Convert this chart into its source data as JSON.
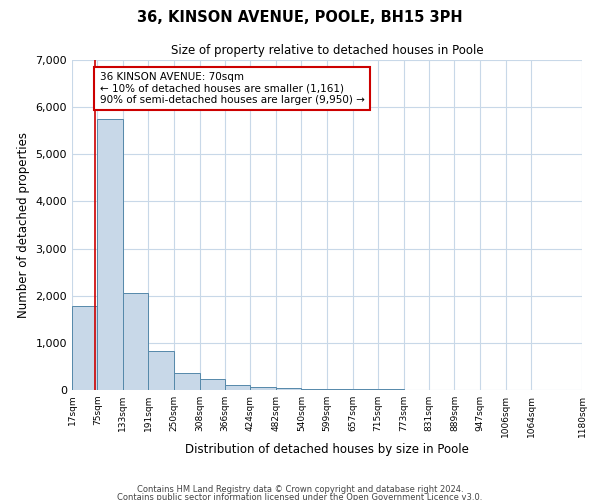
{
  "title": "36, KINSON AVENUE, POOLE, BH15 3PH",
  "subtitle": "Size of property relative to detached houses in Poole",
  "xlabel": "Distribution of detached houses by size in Poole",
  "ylabel": "Number of detached properties",
  "bar_values": [
    1780,
    5750,
    2050,
    830,
    370,
    230,
    110,
    60,
    40,
    30,
    25,
    20,
    15,
    0,
    0,
    0,
    0,
    0,
    0
  ],
  "bin_edges": [
    17,
    75,
    133,
    191,
    250,
    308,
    366,
    424,
    482,
    540,
    599,
    657,
    715,
    773,
    831,
    889,
    947,
    1006,
    1064,
    1180
  ],
  "tick_labels": [
    "17sqm",
    "75sqm",
    "133sqm",
    "191sqm",
    "250sqm",
    "308sqm",
    "366sqm",
    "424sqm",
    "482sqm",
    "540sqm",
    "599sqm",
    "657sqm",
    "715sqm",
    "773sqm",
    "831sqm",
    "889sqm",
    "947sqm",
    "1006sqm",
    "1064sqm",
    "1180sqm"
  ],
  "bar_color": "#c8d8e8",
  "bar_edge_color": "#5588aa",
  "vline_color": "#cc0000",
  "annotation_title": "36 KINSON AVENUE: 70sqm",
  "annotation_line1": "← 10% of detached houses are smaller (1,161)",
  "annotation_line2": "90% of semi-detached houses are larger (9,950) →",
  "annotation_box_color": "#cc0000",
  "ylim": [
    0,
    7000
  ],
  "yticks": [
    0,
    1000,
    2000,
    3000,
    4000,
    5000,
    6000,
    7000
  ],
  "footer_line1": "Contains HM Land Registry data © Crown copyright and database right 2024.",
  "footer_line2": "Contains public sector information licensed under the Open Government Licence v3.0.",
  "bg_color": "#ffffff",
  "grid_color": "#c8d8e8"
}
